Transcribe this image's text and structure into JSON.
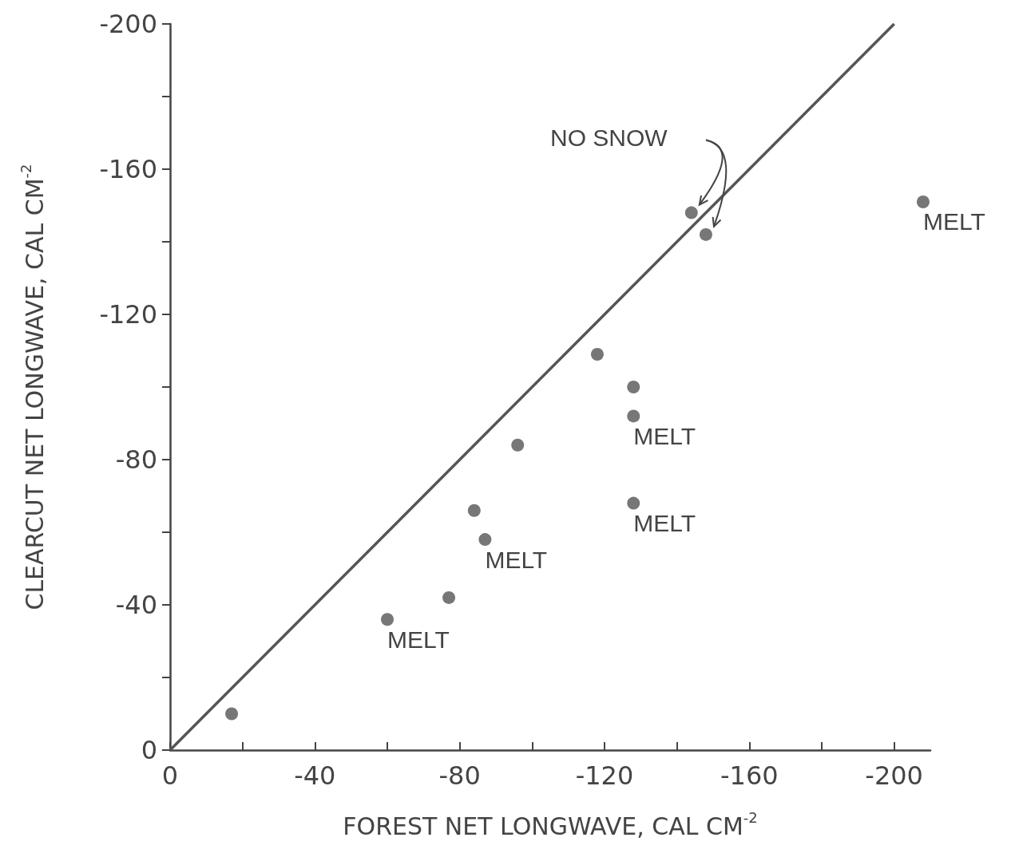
{
  "chart_data": {
    "type": "scatter",
    "xlabel": "FOREST NET LONGWAVE, CAL CM$^{-2}$",
    "ylabel": "CLEARCUT NET LONGWAVE, CAL CM$^{-2}$",
    "series": [
      {
        "marker": "circle",
        "color": "#555555",
        "x": [
          -17,
          -60,
          -77,
          -87,
          -84,
          -96,
          -118,
          -128,
          -128,
          -128,
          -144,
          -148,
          -208
        ],
        "values": [
          -10,
          -36,
          -42,
          -58,
          -66,
          -84,
          -109,
          -100,
          -92,
          -68,
          -148,
          -142,
          -151
        ]
      },
      {
        "type": "line",
        "marker": "none",
        "color": "#555555",
        "x": [
          0,
          -200
        ],
        "values": [
          0,
          -200
        ]
      }
    ],
    "xlim": [
      0,
      -210
    ],
    "ylim": [
      0,
      -200
    ],
    "xticks": [
      0,
      {
        "value": -20,
        "label": null
      },
      -40,
      {
        "value": -60,
        "label": null
      },
      -80,
      {
        "value": -100,
        "label": null
      },
      -120,
      {
        "value": -140,
        "label": null
      },
      -160,
      {
        "value": -180,
        "label": null
      },
      -200
    ],
    "yticks": [
      0,
      {
        "value": -20,
        "label": null
      },
      -40,
      {
        "value": -60,
        "label": null
      },
      -80,
      {
        "value": -100,
        "label": null
      },
      -120,
      {
        "value": -140,
        "label": null
      },
      -160,
      {
        "value": -180,
        "label": null
      },
      -200
    ],
    "annotations": [
      "NO SNOW",
      {
        "text": "MELT",
        "x": -208,
        "y": -151
      },
      {
        "text": "MELT",
        "x": -128,
        "y": -92
      },
      {
        "text": "MELT",
        "x": -128,
        "y": -68
      },
      {
        "text": "MELT",
        "x": -87,
        "y": -58
      },
      {
        "text": "MELT",
        "x": -60,
        "y": -36
      }
    ],
    "grid": false
  }
}
